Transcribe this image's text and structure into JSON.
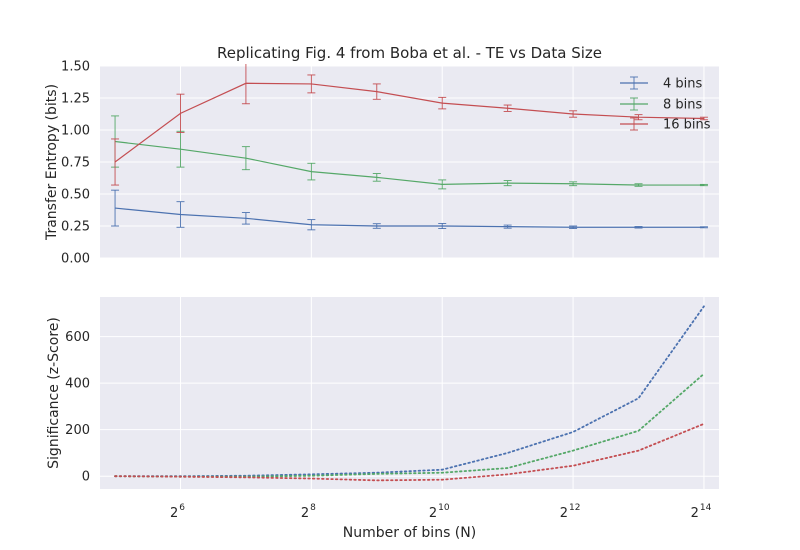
{
  "colors": {
    "bg": "#eaeaf2",
    "grid": "#ffffff",
    "s4": "#4c72b0",
    "s8": "#55a868",
    "s16": "#c44e52"
  },
  "chart_data": [
    {
      "type": "line",
      "title": "Replicating Fig. 4 from Boba et al. - TE vs Data Size",
      "xlabel": "",
      "ylabel": "Transfer Entropy (bits)",
      "x_scale": "log2",
      "x": [
        32,
        64,
        128,
        256,
        512,
        1024,
        2048,
        4096,
        8192,
        16384
      ],
      "ylim": [
        0,
        1.5
      ],
      "yticks": [
        "0.00",
        "0.25",
        "0.50",
        "0.75",
        "1.00",
        "1.25",
        "1.50"
      ],
      "legend_position": "top-right",
      "series": [
        {
          "name": "4 bins",
          "values": [
            0.39,
            0.34,
            0.31,
            0.26,
            0.25,
            0.25,
            0.245,
            0.24,
            0.24,
            0.24
          ],
          "errors": [
            0.14,
            0.1,
            0.045,
            0.04,
            0.018,
            0.02,
            0.012,
            0.01,
            0.006,
            0.004
          ]
        },
        {
          "name": "8 bins",
          "values": [
            0.91,
            0.85,
            0.78,
            0.675,
            0.63,
            0.575,
            0.585,
            0.58,
            0.57,
            0.57
          ],
          "errors": [
            0.2,
            0.14,
            0.09,
            0.065,
            0.03,
            0.035,
            0.02,
            0.015,
            0.01,
            0.005
          ]
        },
        {
          "name": "16 bins",
          "values": [
            0.75,
            1.13,
            1.365,
            1.36,
            1.3,
            1.21,
            1.17,
            1.125,
            1.1,
            1.09
          ],
          "errors": [
            0.18,
            0.15,
            0.16,
            0.07,
            0.06,
            0.045,
            0.025,
            0.025,
            0.02,
            0.01
          ]
        }
      ]
    },
    {
      "type": "line",
      "title": "",
      "xlabel": "Number of bins (N)",
      "ylabel": "Significance (z-Score)",
      "x_scale": "log2",
      "x": [
        32,
        64,
        128,
        256,
        512,
        1024,
        2048,
        4096,
        8192,
        16384
      ],
      "xtick_exponents": [
        "6",
        "8",
        "10",
        "12",
        "14"
      ],
      "xtick_base": "2",
      "ylim": [
        -55,
        770
      ],
      "yticks": [
        "0",
        "200",
        "400",
        "600"
      ],
      "line_style": "dotted",
      "series": [
        {
          "values": [
            0,
            0,
            2,
            8,
            15,
            28,
            100,
            190,
            335,
            730
          ]
        },
        {
          "values": [
            0,
            -2,
            -2,
            2,
            10,
            15,
            35,
            110,
            195,
            440
          ]
        },
        {
          "values": [
            0,
            -2,
            -5,
            -10,
            -18,
            -15,
            8,
            45,
            110,
            225
          ]
        }
      ]
    }
  ]
}
